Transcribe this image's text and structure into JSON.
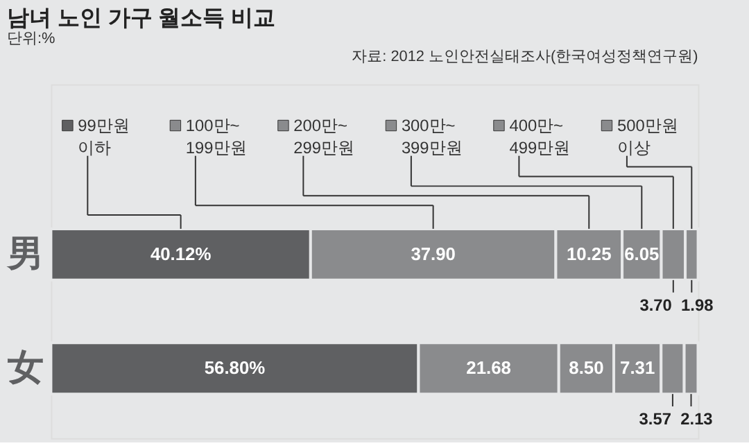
{
  "chart_data": {
    "type": "bar",
    "orientation": "horizontal",
    "stacked": true,
    "title": "남녀 노인 가구 월소득 비교",
    "subtitle": "단위:%",
    "annotations": [
      "자료: 2012 노인안전실태조사(한국여성정책연구원)"
    ],
    "categories": [
      "男",
      "女"
    ],
    "xlim": [
      0,
      100
    ],
    "legend": "top",
    "tick_labels": "y",
    "series": [
      {
        "name": "99만원 이하",
        "color": "#5f6062",
        "values": [
          40.12,
          56.8
        ],
        "value_labels": [
          "40.12%",
          "56.80%"
        ]
      },
      {
        "name": "100만~ 199만원",
        "color": "#8a8b8d",
        "values": [
          37.9,
          21.68
        ],
        "value_labels": [
          "37.90",
          "21.68"
        ]
      },
      {
        "name": "200만~ 299만원",
        "color": "#8a8b8d",
        "values": [
          10.25,
          8.5
        ],
        "value_labels": [
          "10.25",
          "8.50"
        ]
      },
      {
        "name": "300만~ 399만원",
        "color": "#8a8b8d",
        "values": [
          6.05,
          7.31
        ],
        "value_labels": [
          "6.05",
          "7.31"
        ]
      },
      {
        "name": "400만~ 499만원",
        "color": "#8a8b8d",
        "values": [
          3.7,
          3.57
        ],
        "value_labels": [
          "3.70",
          "3.57"
        ]
      },
      {
        "name": "500만원 이상",
        "color": "#8a8b8d",
        "values": [
          1.98,
          2.13
        ],
        "value_labels": [
          "1.98",
          "2.13"
        ]
      }
    ]
  }
}
